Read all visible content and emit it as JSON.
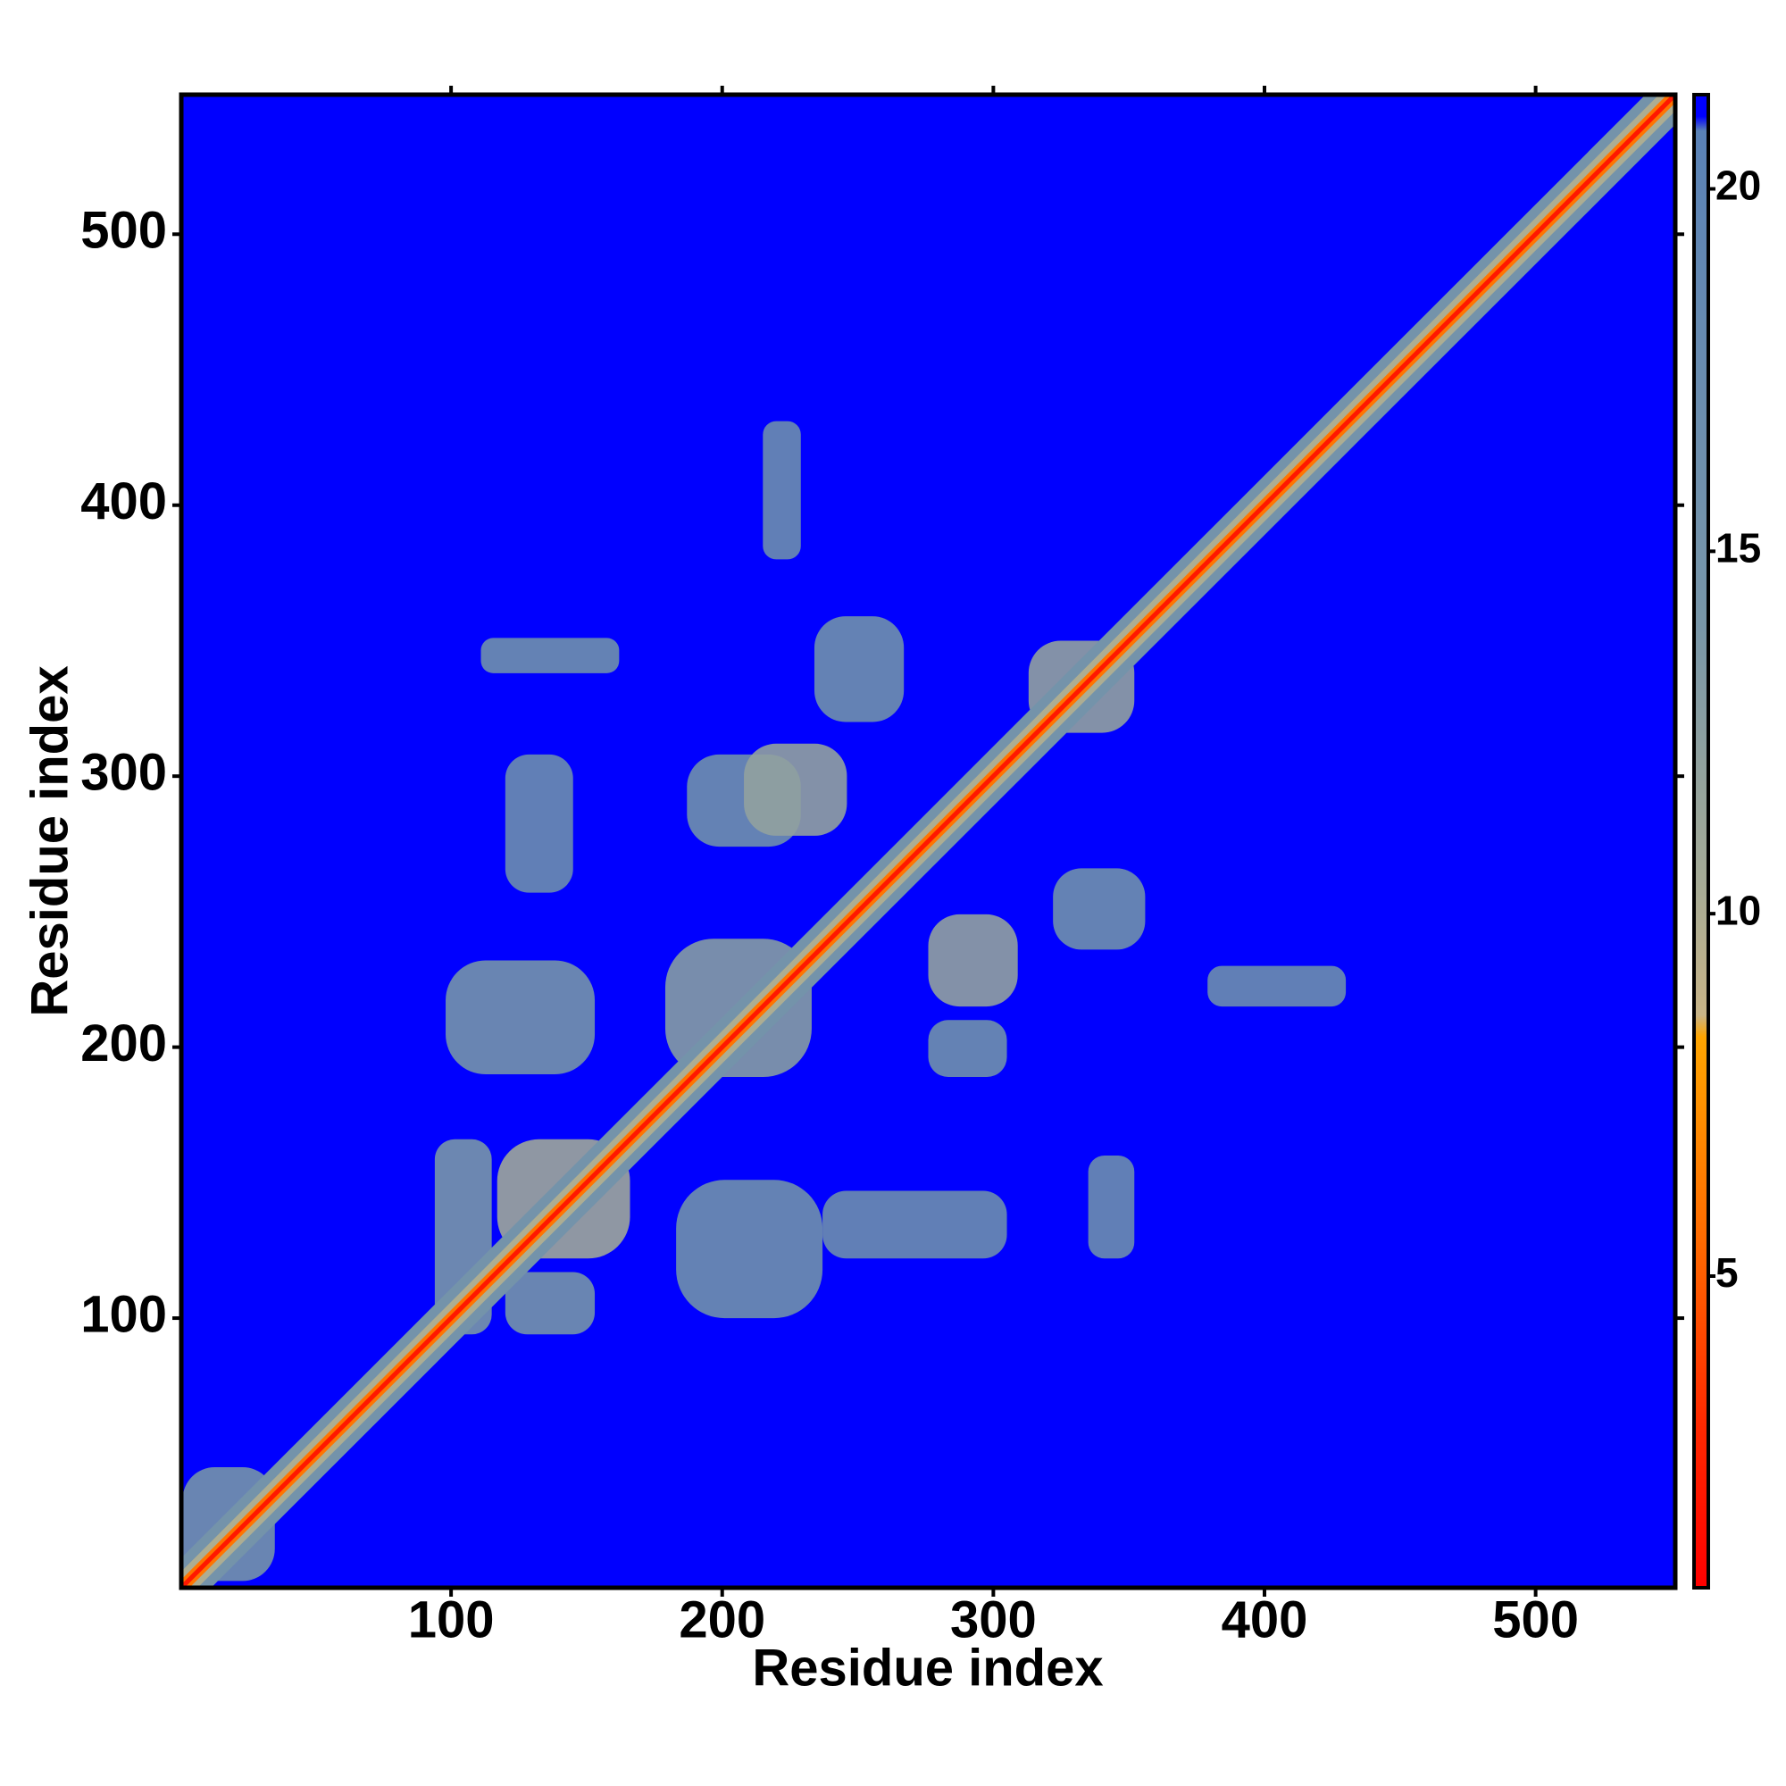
{
  "chart_data": {
    "type": "heatmap",
    "x_label": "Residue index",
    "y_label": "Residue index",
    "xlim": [
      0.5,
      551.5
    ],
    "ylim": [
      0.5,
      551.5
    ],
    "xticks": [
      100,
      200,
      300,
      400,
      500
    ],
    "yticks": [
      100,
      200,
      300,
      400,
      500
    ],
    "background_value": 21.3,
    "colorbar": {
      "lim": [
        0.7,
        21.3
      ],
      "ticks": [
        5,
        10,
        15,
        20
      ],
      "stops": [
        {
          "value": 0.7,
          "color": "#ff0000"
        },
        {
          "value": 3,
          "color": "#ff2a00"
        },
        {
          "value": 5.5,
          "color": "#ff6a00"
        },
        {
          "value": 8.3,
          "color": "#ffa500"
        },
        {
          "value": 8.6,
          "color": "#c8b487"
        },
        {
          "value": 10.5,
          "color": "#a4aa96"
        },
        {
          "value": 14,
          "color": "#7896a8"
        },
        {
          "value": 20.8,
          "color": "#5a82b6"
        },
        {
          "value": 21,
          "color": "#0000ff"
        },
        {
          "value": 21.3,
          "color": "#0000ff"
        }
      ]
    },
    "diagonal_bands": [
      {
        "half_width": 11,
        "value": 15
      },
      {
        "half_width": 6,
        "value": 10
      },
      {
        "half_width": 3,
        "value": 6
      },
      {
        "half_width": 1.2,
        "value": 2
      }
    ],
    "patches": [
      {
        "x": [
          94,
          115
        ],
        "y": [
          94,
          166
        ],
        "value": 14
      },
      {
        "x": [
          117,
          166
        ],
        "y": [
          122,
          166
        ],
        "value": 11
      },
      {
        "x": [
          98,
          153
        ],
        "y": [
          190,
          232
        ],
        "value": 15
      },
      {
        "x": [
          187,
          229
        ],
        "y": [
          274,
          308
        ],
        "value": 16
      },
      {
        "x": [
          208,
          246
        ],
        "y": [
          278,
          312
        ],
        "value": 12
      },
      {
        "x": [
          111,
          162
        ],
        "y": [
          338,
          351
        ],
        "value": 16
      },
      {
        "x": [
          215,
          229
        ],
        "y": [
          380,
          431
        ],
        "value": 17
      },
      {
        "x": [
          234,
          267
        ],
        "y": [
          320,
          359
        ],
        "value": 16
      },
      {
        "x": [
          313,
          352
        ],
        "y": [
          316,
          350
        ],
        "value": 12
      },
      {
        "x": [
          120,
          145
        ],
        "y": [
          257,
          308
        ],
        "value": 17
      },
      {
        "x": [
          183,
          237
        ],
        "y": [
          100,
          151
        ],
        "value": 16
      },
      {
        "x": [
          237,
          305
        ],
        "y": [
          122,
          147
        ],
        "value": 17
      },
      {
        "x": [
          335,
          352
        ],
        "y": [
          122,
          160
        ],
        "value": 17
      },
      {
        "x": [
          276,
          309
        ],
        "y": [
          215,
          249
        ],
        "value": 12
      },
      {
        "x": [
          322,
          356
        ],
        "y": [
          236,
          266
        ],
        "value": 16
      },
      {
        "x": [
          379,
          430
        ],
        "y": [
          215,
          230
        ],
        "value": 17
      },
      {
        "x": [
          179,
          233
        ],
        "y": [
          189,
          240
        ],
        "value": 13
      },
      {
        "x": [
          120,
          153
        ],
        "y": [
          94,
          117
        ],
        "value": 15
      },
      {
        "x": [
          276,
          305
        ],
        "y": [
          189,
          210
        ],
        "value": 16
      },
      {
        "x": [
          1,
          35
        ],
        "y": [
          3,
          45
        ],
        "value": 15
      }
    ]
  }
}
